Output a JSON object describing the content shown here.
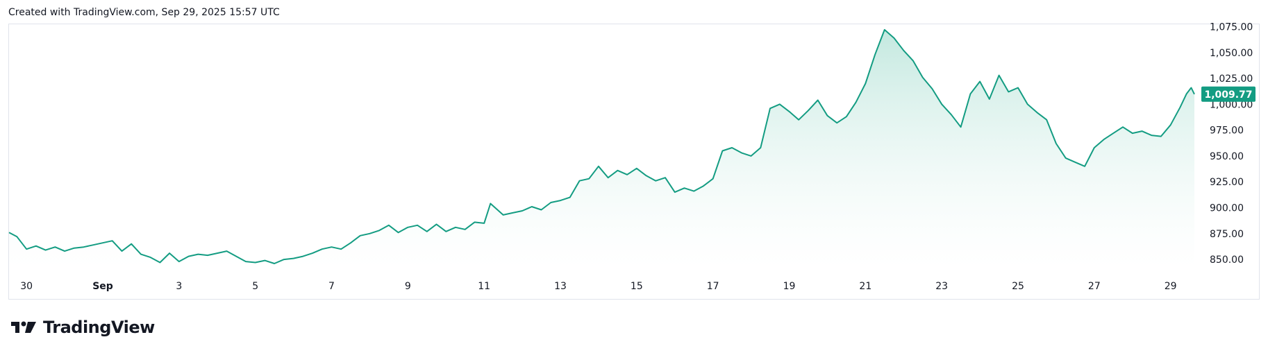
{
  "header": {
    "credit": "Created with TradingView.com, Sep 29, 2025 15:57 UTC"
  },
  "brand": {
    "name": "TradingView",
    "logo_icon": "tradingview-logo-icon"
  },
  "colors": {
    "line": "#139C82",
    "fill_top": "#BDE6DC",
    "fill_bottom": "#FFFFFF",
    "price_label": "#139C82",
    "border": "#E0E3EB"
  },
  "chart_data": {
    "type": "area",
    "title": "",
    "xlabel": "",
    "ylabel": "",
    "ylim": [
      842,
      1078
    ],
    "xlim": [
      "2025-08-29 13:00",
      "2025-09-29 15:00"
    ],
    "x_ticks": [
      "30",
      "Sep",
      "3",
      "5",
      "7",
      "9",
      "11",
      "13",
      "15",
      "17",
      "19",
      "21",
      "23",
      "25",
      "27",
      "29"
    ],
    "x_tick_dates": [
      "2025-08-30",
      "2025-09-01",
      "2025-09-03",
      "2025-09-05",
      "2025-09-07",
      "2025-09-09",
      "2025-09-11",
      "2025-09-13",
      "2025-09-15",
      "2025-09-17",
      "2025-09-19",
      "2025-09-21",
      "2025-09-23",
      "2025-09-25",
      "2025-09-27",
      "2025-09-29"
    ],
    "y_ticks": [
      "850.00",
      "875.00",
      "900.00",
      "925.00",
      "950.00",
      "975.00",
      "1,000.00",
      "1,025.00",
      "1,050.00",
      "1,075.00"
    ],
    "y_tick_values": [
      850,
      875,
      900,
      925,
      950,
      975,
      1000,
      1025,
      1050,
      1075
    ],
    "last_price": {
      "value": 1009.77,
      "label": "1,009.77"
    },
    "grid": false,
    "series": [
      {
        "points": [
          [
            "2025-08-29 13:00",
            876
          ],
          [
            "2025-08-29 18:00",
            872
          ],
          [
            "2025-08-30 00:00",
            860
          ],
          [
            "2025-08-30 06:00",
            863
          ],
          [
            "2025-08-30 12:00",
            859
          ],
          [
            "2025-08-30 18:00",
            862
          ],
          [
            "2025-08-31 00:00",
            858
          ],
          [
            "2025-08-31 06:00",
            861
          ],
          [
            "2025-08-31 12:00",
            862
          ],
          [
            "2025-08-31 18:00",
            864
          ],
          [
            "2025-09-01 00:00",
            866
          ],
          [
            "2025-09-01 06:00",
            868
          ],
          [
            "2025-09-01 12:00",
            858
          ],
          [
            "2025-09-01 18:00",
            865
          ],
          [
            "2025-09-02 00:00",
            855
          ],
          [
            "2025-09-02 06:00",
            852
          ],
          [
            "2025-09-02 12:00",
            847
          ],
          [
            "2025-09-02 18:00",
            856
          ],
          [
            "2025-09-03 00:00",
            848
          ],
          [
            "2025-09-03 06:00",
            853
          ],
          [
            "2025-09-03 12:00",
            855
          ],
          [
            "2025-09-03 18:00",
            854
          ],
          [
            "2025-09-04 00:00",
            856
          ],
          [
            "2025-09-04 06:00",
            858
          ],
          [
            "2025-09-04 12:00",
            853
          ],
          [
            "2025-09-04 18:00",
            848
          ],
          [
            "2025-09-05 00:00",
            847
          ],
          [
            "2025-09-05 06:00",
            849
          ],
          [
            "2025-09-05 12:00",
            846
          ],
          [
            "2025-09-05 18:00",
            850
          ],
          [
            "2025-09-06 00:00",
            851
          ],
          [
            "2025-09-06 06:00",
            853
          ],
          [
            "2025-09-06 12:00",
            856
          ],
          [
            "2025-09-06 18:00",
            860
          ],
          [
            "2025-09-07 00:00",
            862
          ],
          [
            "2025-09-07 06:00",
            860
          ],
          [
            "2025-09-07 12:00",
            866
          ],
          [
            "2025-09-07 18:00",
            873
          ],
          [
            "2025-09-08 00:00",
            875
          ],
          [
            "2025-09-08 06:00",
            878
          ],
          [
            "2025-09-08 12:00",
            883
          ],
          [
            "2025-09-08 18:00",
            876
          ],
          [
            "2025-09-09 00:00",
            881
          ],
          [
            "2025-09-09 06:00",
            883
          ],
          [
            "2025-09-09 12:00",
            877
          ],
          [
            "2025-09-09 18:00",
            884
          ],
          [
            "2025-09-10 00:00",
            877
          ],
          [
            "2025-09-10 06:00",
            881
          ],
          [
            "2025-09-10 12:00",
            879
          ],
          [
            "2025-09-10 18:00",
            886
          ],
          [
            "2025-09-11 00:00",
            885
          ],
          [
            "2025-09-11 04:00",
            904
          ],
          [
            "2025-09-11 12:00",
            893
          ],
          [
            "2025-09-11 18:00",
            895
          ],
          [
            "2025-09-12 00:00",
            897
          ],
          [
            "2025-09-12 06:00",
            901
          ],
          [
            "2025-09-12 12:00",
            898
          ],
          [
            "2025-09-12 18:00",
            905
          ],
          [
            "2025-09-13 00:00",
            907
          ],
          [
            "2025-09-13 06:00",
            910
          ],
          [
            "2025-09-13 12:00",
            926
          ],
          [
            "2025-09-13 18:00",
            928
          ],
          [
            "2025-09-14 00:00",
            940
          ],
          [
            "2025-09-14 06:00",
            929
          ],
          [
            "2025-09-14 12:00",
            936
          ],
          [
            "2025-09-14 18:00",
            932
          ],
          [
            "2025-09-15 00:00",
            938
          ],
          [
            "2025-09-15 06:00",
            931
          ],
          [
            "2025-09-15 12:00",
            926
          ],
          [
            "2025-09-15 18:00",
            929
          ],
          [
            "2025-09-16 00:00",
            915
          ],
          [
            "2025-09-16 06:00",
            919
          ],
          [
            "2025-09-16 12:00",
            916
          ],
          [
            "2025-09-16 18:00",
            921
          ],
          [
            "2025-09-17 00:00",
            928
          ],
          [
            "2025-09-17 06:00",
            955
          ],
          [
            "2025-09-17 12:00",
            958
          ],
          [
            "2025-09-17 18:00",
            953
          ],
          [
            "2025-09-18 00:00",
            950
          ],
          [
            "2025-09-18 06:00",
            958
          ],
          [
            "2025-09-18 12:00",
            996
          ],
          [
            "2025-09-18 18:00",
            1000
          ],
          [
            "2025-09-19 00:00",
            993
          ],
          [
            "2025-09-19 06:00",
            985
          ],
          [
            "2025-09-19 12:00",
            994
          ],
          [
            "2025-09-19 18:00",
            1004
          ],
          [
            "2025-09-20 00:00",
            989
          ],
          [
            "2025-09-20 06:00",
            982
          ],
          [
            "2025-09-20 12:00",
            988
          ],
          [
            "2025-09-20 18:00",
            1002
          ],
          [
            "2025-09-21 00:00",
            1020
          ],
          [
            "2025-09-21 06:00",
            1048
          ],
          [
            "2025-09-21 12:00",
            1072
          ],
          [
            "2025-09-21 18:00",
            1064
          ],
          [
            "2025-09-22 00:00",
            1052
          ],
          [
            "2025-09-22 06:00",
            1042
          ],
          [
            "2025-09-22 12:00",
            1026
          ],
          [
            "2025-09-22 18:00",
            1015
          ],
          [
            "2025-09-23 00:00",
            1000
          ],
          [
            "2025-09-23 06:00",
            990
          ],
          [
            "2025-09-23 12:00",
            978
          ],
          [
            "2025-09-23 18:00",
            1010
          ],
          [
            "2025-09-24 00:00",
            1022
          ],
          [
            "2025-09-24 06:00",
            1005
          ],
          [
            "2025-09-24 12:00",
            1028
          ],
          [
            "2025-09-24 18:00",
            1012
          ],
          [
            "2025-09-25 00:00",
            1016
          ],
          [
            "2025-09-25 06:00",
            1000
          ],
          [
            "2025-09-25 12:00",
            992
          ],
          [
            "2025-09-25 18:00",
            985
          ],
          [
            "2025-09-26 00:00",
            962
          ],
          [
            "2025-09-26 06:00",
            948
          ],
          [
            "2025-09-26 12:00",
            944
          ],
          [
            "2025-09-26 18:00",
            940
          ],
          [
            "2025-09-27 00:00",
            958
          ],
          [
            "2025-09-27 06:00",
            966
          ],
          [
            "2025-09-27 12:00",
            972
          ],
          [
            "2025-09-27 18:00",
            978
          ],
          [
            "2025-09-28 00:00",
            972
          ],
          [
            "2025-09-28 06:00",
            974
          ],
          [
            "2025-09-28 12:00",
            970
          ],
          [
            "2025-09-28 18:00",
            969
          ],
          [
            "2025-09-29 00:00",
            980
          ],
          [
            "2025-09-29 06:00",
            997
          ],
          [
            "2025-09-29 10:00",
            1010
          ],
          [
            "2025-09-29 13:00",
            1016
          ],
          [
            "2025-09-29 15:00",
            1009.77
          ]
        ]
      }
    ]
  }
}
